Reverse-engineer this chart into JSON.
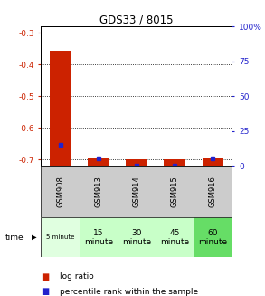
{
  "title": "GDS33 / 8015",
  "samples": [
    "GSM908",
    "GSM913",
    "GSM914",
    "GSM915",
    "GSM916"
  ],
  "time_labels": [
    "5 minute",
    "15\nminute",
    "30\nminute",
    "45\nminute",
    "60\nminute"
  ],
  "log_ratios": [
    -0.355,
    -0.698,
    -0.7,
    -0.7,
    -0.698
  ],
  "percentile_ranks": [
    15,
    5,
    0,
    0,
    5
  ],
  "ylim_left": [
    -0.72,
    -0.28
  ],
  "ylim_right": [
    0,
    100
  ],
  "yticks_left": [
    -0.7,
    -0.6,
    -0.5,
    -0.4,
    -0.3
  ],
  "yticks_right": [
    0,
    25,
    50,
    75,
    100
  ],
  "bar_color": "#cc2200",
  "dot_color": "#2222cc",
  "bg_color_gray": "#cccccc",
  "bg_color_green_light": "#e0ffe0",
  "bg_color_green_mid": "#c8ffc8",
  "bg_color_green_dark": "#66dd66",
  "left_axis_color": "#cc2200",
  "right_axis_color": "#2222cc",
  "bar_width": 0.55
}
